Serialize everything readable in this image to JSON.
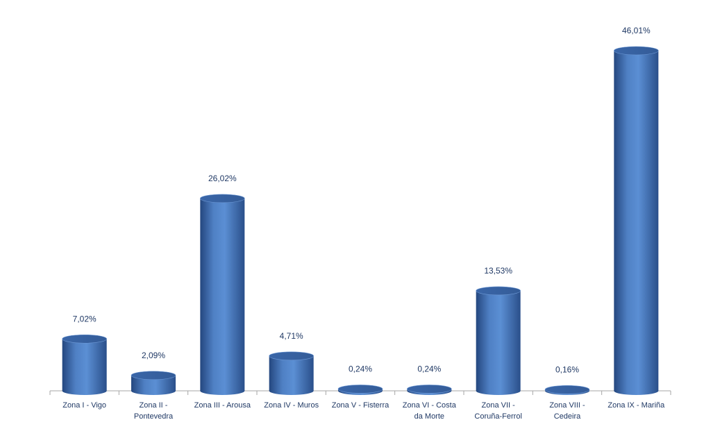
{
  "chart_data": {
    "type": "bar",
    "categories": [
      "Zona I - Vigo",
      "Zona II -\nPontevedra",
      "Zona III - Arousa",
      "Zona IV - Muros",
      "Zona V - Fisterra",
      "Zona VI - Costa\nda Morte",
      "Zona VII -\nCoruña-Ferrol",
      "Zona VIII -\nCedeira",
      "Zona IX - Mariña"
    ],
    "values": [
      7.02,
      2.09,
      26.02,
      4.71,
      0.24,
      0.24,
      13.53,
      0.16,
      46.01
    ],
    "value_labels": [
      "7,02%",
      "2,09%",
      "26,02%",
      "4,71%",
      "0,24%",
      "0,24%",
      "13,53%",
      "0,16%",
      "46,01%"
    ],
    "color": "#4f80c4"
  }
}
